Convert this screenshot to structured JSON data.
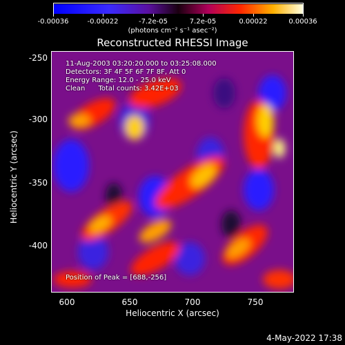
{
  "colorbar": {
    "ticks": [
      "-0.00036",
      "-0.00022",
      "-7.2e-05",
      "7.2e-05",
      "0.00022",
      "0.00036"
    ],
    "units": "(photons cm⁻² s⁻¹ asec⁻²)"
  },
  "title": "Reconstructed RHESSI Image",
  "info": {
    "time_range": "11-Aug-2003 03:20:20.000 to 03:25:08.000",
    "detectors": "Detectors: 3F 4F 5F 6F 7F 8F, Att 0",
    "energy": "Energy Range: 12.0 - 25.0 keV",
    "clean": "Clean      Total counts: 3.42E+03",
    "peak": "Position of Peak = [688,-256]"
  },
  "axes": {
    "xlabel": "Heliocentric X (arcsec)",
    "ylabel": "Heliocentric Y (arcsec)",
    "xticks": [
      "600",
      "650",
      "700",
      "750"
    ],
    "yticks": [
      "-250",
      "-300",
      "-350",
      "-400"
    ]
  },
  "footer": {
    "date": "4-May-2022 17:38"
  },
  "colors": {
    "low": "#1a1aff",
    "mid": "#7a0f8a",
    "high": "#ff2a00",
    "peak": "#ffff80"
  }
}
